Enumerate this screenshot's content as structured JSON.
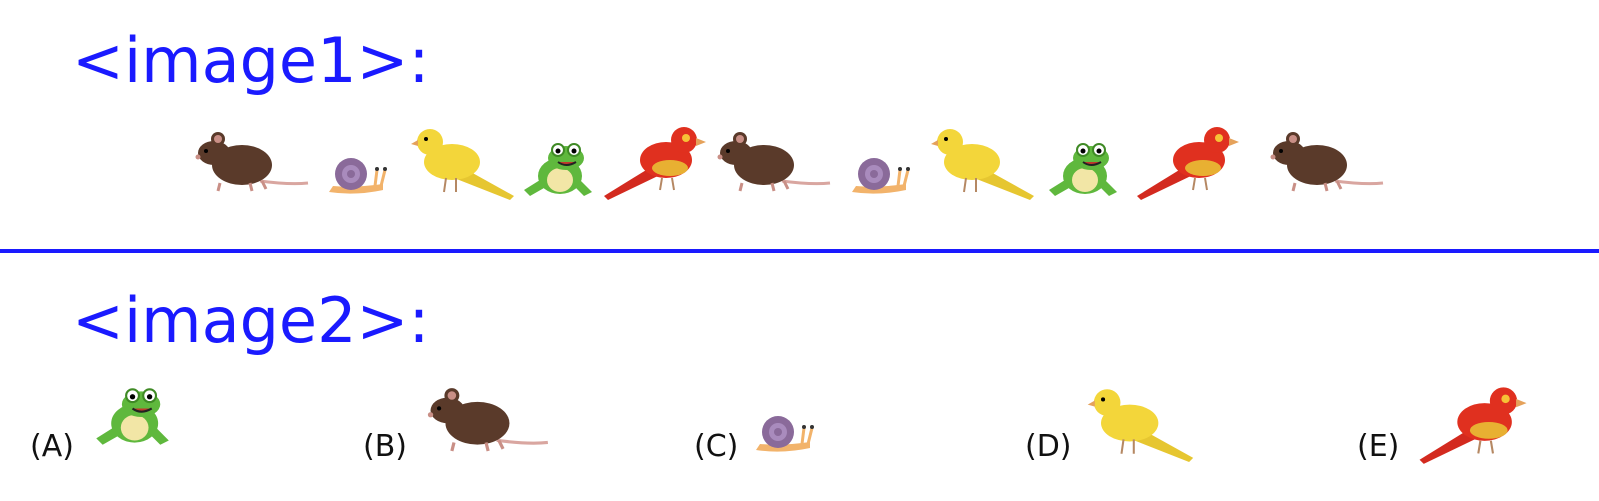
{
  "headings": {
    "image1": "<image1>:",
    "image2": "<image2>:"
  },
  "colors": {
    "heading": "#1a1aff",
    "divider": "#1a1aff"
  },
  "sequence": [
    "rat",
    "snail",
    "yellow-bird",
    "frog",
    "red-bird",
    "rat",
    "snail",
    "yellow-bird",
    "frog",
    "red-bird",
    "rat"
  ],
  "options": [
    {
      "label": "(A)",
      "animal": "frog"
    },
    {
      "label": "(B)",
      "animal": "rat"
    },
    {
      "label": "(C)",
      "animal": "snail"
    },
    {
      "label": "(D)",
      "animal": "yellow-bird"
    },
    {
      "label": "(E)",
      "animal": "red-bird"
    }
  ]
}
